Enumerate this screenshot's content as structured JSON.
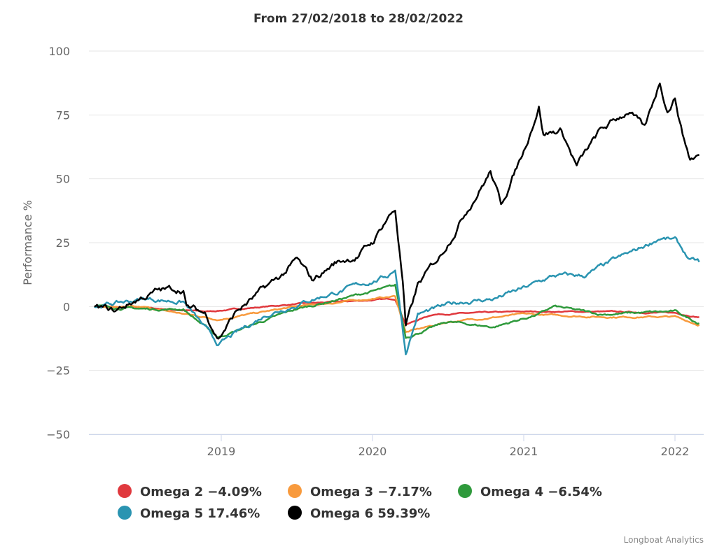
{
  "chart_data": {
    "type": "line",
    "title": "From 27/02/2018 to 28/02/2022",
    "xlabel": "",
    "ylabel": "Performance %",
    "ylim": [
      -50,
      100
    ],
    "xlim": [
      2018.16,
      2022.16
    ],
    "yticks": [
      -50,
      -25,
      0,
      25,
      50,
      75,
      100
    ],
    "yticklabels": [
      "−50",
      "−25",
      "0",
      "25",
      "50",
      "75",
      "100"
    ],
    "xticks": [
      2019,
      2020,
      2021,
      2022
    ],
    "xticklabels": [
      "2019",
      "2020",
      "2021",
      "2022"
    ],
    "grid": true,
    "legend_position": "bottom-center",
    "series": [
      {
        "name": "Omega 2",
        "legend": "Omega 2 −4.09%",
        "color": "#e0393e",
        "x": [
          2018.16,
          2018.5,
          2018.9,
          2019.5,
          2020.15,
          2020.22,
          2020.4,
          2021.0,
          2021.5,
          2022.0,
          2022.16
        ],
        "y": [
          0,
          -0.5,
          -2,
          1,
          3,
          -7,
          -3,
          -2,
          -2,
          -2.5,
          -4.09
        ]
      },
      {
        "name": "Omega 3",
        "legend": "Omega 3 −7.17%",
        "color": "#f89a3d",
        "x": [
          2018.16,
          2018.5,
          2018.98,
          2019.5,
          2020.15,
          2020.22,
          2020.5,
          2021.0,
          2021.5,
          2022.0,
          2022.16
        ],
        "y": [
          0,
          -0.5,
          -5,
          0,
          4,
          -10,
          -6,
          -3,
          -4,
          -4,
          -7.17
        ]
      },
      {
        "name": "Omega 4",
        "legend": "Omega 4 −6.54%",
        "color": "#2f9a3c",
        "x": [
          2018.16,
          2018.5,
          2018.75,
          2018.98,
          2019.5,
          2020.15,
          2020.22,
          2020.5,
          2020.8,
          2021.1,
          2021.2,
          2021.5,
          2022.0,
          2022.16
        ],
        "y": [
          0,
          -1,
          -1,
          -12,
          -1,
          8,
          -12,
          -6,
          -8,
          -3,
          0,
          -3,
          -2,
          -6.54
        ]
      },
      {
        "name": "Omega 5",
        "legend": "Omega 5 17.46%",
        "color": "#2a94b1",
        "x": [
          2018.16,
          2018.5,
          2018.75,
          2018.98,
          2019.3,
          2019.6,
          2019.9,
          2020.1,
          2020.15,
          2020.22,
          2020.3,
          2020.6,
          2020.8,
          2021.0,
          2021.2,
          2021.4,
          2021.6,
          2021.75,
          2021.9,
          2022.0,
          2022.1,
          2022.16
        ],
        "y": [
          0,
          3,
          2,
          -15,
          -3,
          3,
          8,
          12,
          15,
          -18,
          -3,
          2,
          3,
          7,
          12,
          12,
          18,
          22,
          27,
          26,
          18,
          17.46
        ]
      },
      {
        "name": "Omega 6",
        "legend": "Omega 6 59.39%",
        "color": "#000000",
        "x": [
          2018.16,
          2018.3,
          2018.45,
          2018.58,
          2018.75,
          2018.77,
          2018.9,
          2018.98,
          2019.1,
          2019.25,
          2019.4,
          2019.5,
          2019.6,
          2019.75,
          2019.9,
          2020.0,
          2020.1,
          2020.15,
          2020.2,
          2020.22,
          2020.3,
          2020.45,
          2020.6,
          2020.78,
          2020.85,
          2021.0,
          2021.1,
          2021.13,
          2021.25,
          2021.35,
          2021.5,
          2021.7,
          2021.8,
          2021.9,
          2021.95,
          2022.0,
          2022.05,
          2022.1,
          2022.16
        ],
        "y": [
          0,
          -2,
          3,
          6,
          7,
          0,
          -3,
          -12,
          -2,
          5,
          12,
          18,
          10,
          17,
          20,
          25,
          35,
          38,
          10,
          -8,
          8,
          20,
          36,
          53,
          40,
          61,
          79,
          68,
          69,
          55,
          68,
          77,
          69,
          88,
          77,
          82,
          68,
          58,
          59.39
        ]
      }
    ]
  },
  "credits": "Longboat Analytics"
}
